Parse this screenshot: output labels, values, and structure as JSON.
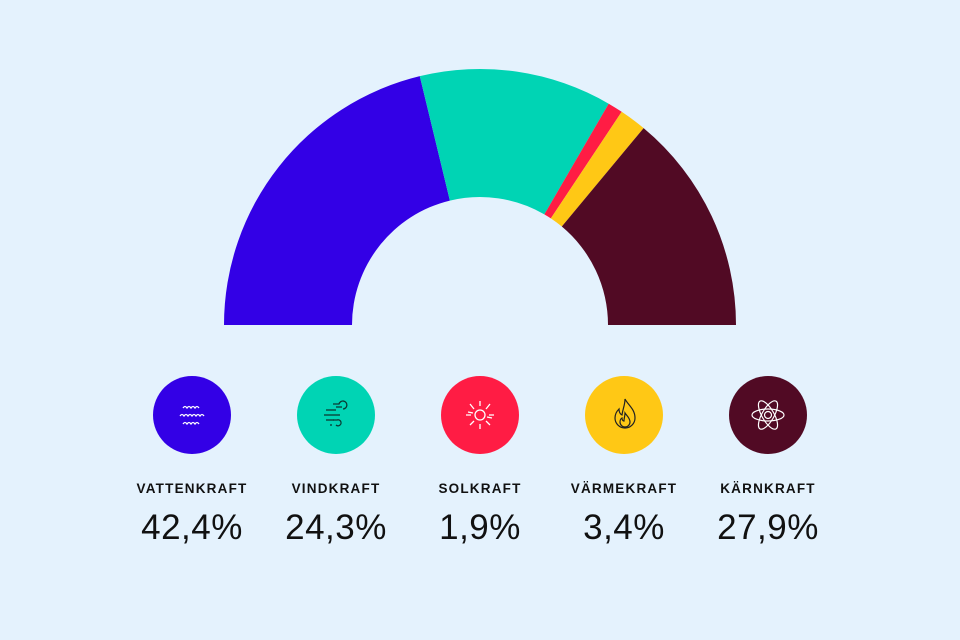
{
  "chart_data": {
    "type": "pie",
    "variant": "semi-donut",
    "categories": [
      "VATTENKRAFT",
      "VINDKRAFT",
      "SOLKRAFT",
      "VÄRMEKRAFT",
      "KÄRNKRAFT"
    ],
    "values": [
      42.4,
      24.3,
      1.9,
      3.4,
      27.9
    ],
    "value_labels": [
      "42,4%",
      "24,3%",
      "1,9%",
      "3,4%",
      "27,9%"
    ],
    "colors": [
      "#3300e6",
      "#00d4b4",
      "#ff1c44",
      "#ffc815",
      "#510a24"
    ],
    "icons": [
      "water-waves-icon",
      "wind-icon",
      "sun-icon",
      "flame-icon",
      "atom-icon"
    ],
    "legend_placement": "bottom"
  }
}
